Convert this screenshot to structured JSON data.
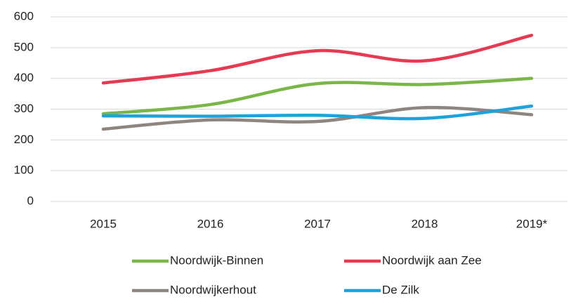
{
  "chart_data": {
    "type": "line",
    "categories": [
      "2015",
      "2016",
      "2017",
      "2018",
      "2019*"
    ],
    "series": [
      {
        "name": "Noordwijk-Binnen",
        "color": "#7ab648",
        "values": [
          285,
          315,
          383,
          380,
          400
        ]
      },
      {
        "name": "Noordwijk aan Zee",
        "color": "#e53a52",
        "values": [
          385,
          425,
          490,
          457,
          540
        ]
      },
      {
        "name": "Noordwijkerhout",
        "color": "#8e8580",
        "values": [
          235,
          265,
          260,
          305,
          282
        ]
      },
      {
        "name": "De Zilk",
        "color": "#1ea2dc",
        "values": [
          278,
          277,
          280,
          270,
          310
        ]
      }
    ],
    "ylim": [
      0,
      600
    ],
    "yticks": [
      0,
      100,
      200,
      300,
      400,
      500,
      600
    ],
    "grid": true,
    "smooth": true
  }
}
